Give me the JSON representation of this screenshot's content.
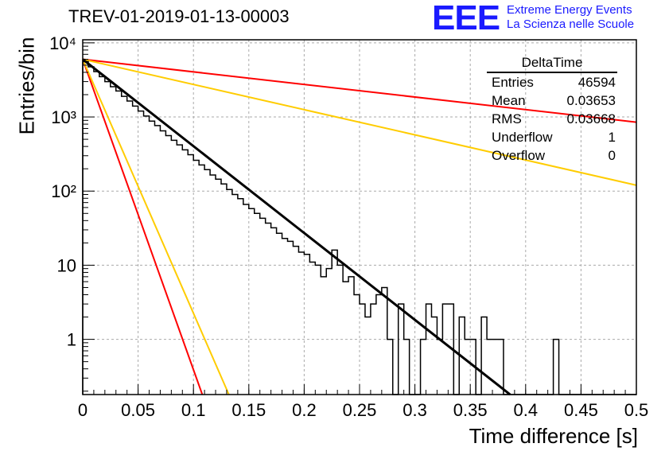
{
  "title": "TREV-01-2019-01-13-00003",
  "logo": {
    "mark": "EEE",
    "line1": "Extreme Energy Events",
    "line2": "La Scienza nelle Scuole",
    "color": "#1a1aff"
  },
  "stats": {
    "title": "DeltaTime",
    "rows": [
      {
        "label": "Entries",
        "value": "46594"
      },
      {
        "label": "Mean",
        "value": "0.03653"
      },
      {
        "label": "RMS",
        "value": "0.03668"
      },
      {
        "label": "Underflow",
        "value": "1"
      },
      {
        "label": "Overflow",
        "value": "0"
      }
    ]
  },
  "chart_data": {
    "type": "line",
    "title": "TREV-01-2019-01-13-00003",
    "xlabel": "Time difference [s]",
    "ylabel": "Entries/bin",
    "xlim": [
      0,
      0.5
    ],
    "ylim": [
      0.18,
      11000
    ],
    "yscale": "log",
    "grid": true,
    "x_ticks": [
      "0",
      "0.05",
      "0.1",
      "0.15",
      "0.2",
      "0.25",
      "0.3",
      "0.35",
      "0.4",
      "0.45",
      "0.5"
    ],
    "y_ticks": [
      {
        "value": 1,
        "label": "1"
      },
      {
        "value": 10,
        "label": "10"
      },
      {
        "value": 100,
        "label": "10²"
      },
      {
        "value": 1000,
        "label": "10³"
      },
      {
        "value": 10000,
        "label": "10⁴"
      }
    ],
    "histogram": {
      "name": "DeltaTime",
      "color": "#000000",
      "bin_width": 0.005,
      "counts": [
        5600,
        4750,
        4100,
        3500,
        3000,
        2560,
        2240,
        1900,
        1640,
        1400,
        1200,
        1030,
        880,
        765,
        650,
        560,
        485,
        420,
        360,
        310,
        260,
        225,
        195,
        165,
        145,
        125,
        105,
        90,
        79,
        66,
        58,
        50,
        43,
        37,
        32,
        27,
        23,
        21,
        18,
        15,
        14,
        11,
        10,
        7,
        9,
        16,
        10,
        6,
        7,
        4,
        3,
        2,
        3,
        4,
        5,
        1,
        0,
        3,
        1,
        0,
        0,
        1,
        3,
        2,
        1,
        3,
        3,
        0,
        2,
        1,
        1,
        0,
        2,
        1,
        1,
        1,
        0,
        0,
        0,
        0,
        0,
        0,
        0,
        0,
        0,
        1,
        0,
        0,
        0,
        0,
        0,
        0,
        0,
        0,
        0,
        0,
        0,
        0,
        0,
        0
      ]
    },
    "fit_lines": [
      {
        "color": "#000000",
        "width": 3,
        "points": [
          [
            0,
            6000
          ],
          [
            0.386,
            0.18
          ]
        ]
      },
      {
        "color": "#ff0000",
        "width": 2,
        "points": [
          [
            0,
            6000
          ],
          [
            0.5,
            850
          ]
        ]
      },
      {
        "color": "#ffcc00",
        "width": 2,
        "points": [
          [
            0,
            6000
          ],
          [
            0.5,
            120
          ]
        ]
      },
      {
        "color": "#ff0000",
        "width": 2,
        "points": [
          [
            0,
            6000
          ],
          [
            0.108,
            0.18
          ]
        ]
      },
      {
        "color": "#ffcc00",
        "width": 2,
        "points": [
          [
            0,
            6000
          ],
          [
            0.132,
            0.18
          ]
        ]
      }
    ]
  }
}
